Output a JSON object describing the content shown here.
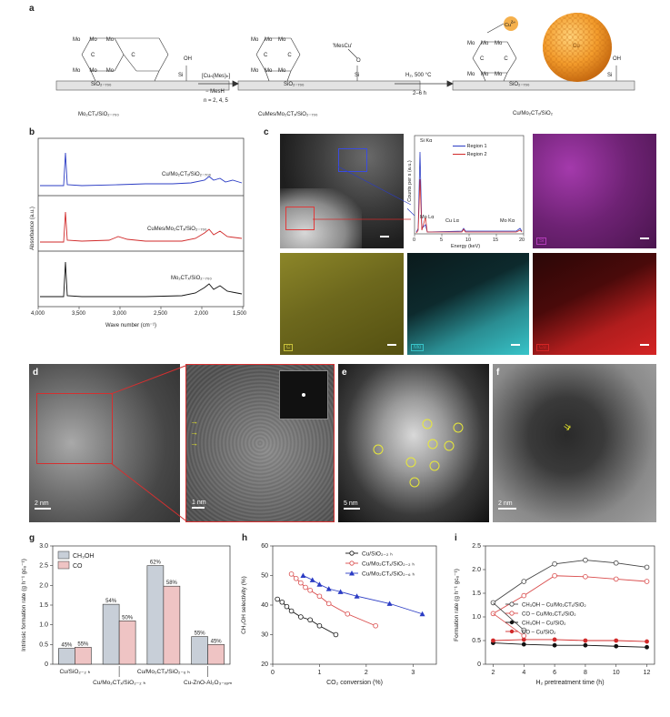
{
  "panel_a": {
    "label": "a",
    "surface1": "SiO₂₋₇₀₀",
    "surface2": "SiO₂₋₇₀₀",
    "surface3": "SiO₂₋₇₀₀",
    "caption1": "Mo₂CTₓ/SiO₂₋₇₀₀",
    "caption2": "CuMes/Mo₂CTₓ/SiO₂₋₇₀₀",
    "caption3": "Cu/Mo₂CTₓ/SiO₂",
    "arrow1_top": "[Cuₙ(Mes)ₙ]",
    "arrow1_mid": "− MesH",
    "arrow1_bottom": "n = 2, 4, 5",
    "arrow2_top": "H₂, 500 °C",
    "arrow2_bottom": "2–6 h",
    "oh": "OH",
    "si": "Si",
    "mescu": "'MesCu'",
    "cu_delta": "Cu",
    "delta": "δ+",
    "cu_np": "Cu",
    "mo": "Mo",
    "c": "C",
    "o": "O"
  },
  "panel_b": {
    "label": "b",
    "ylabel": "Absorbance (a.u.)",
    "xlabel": "Wave number (cm⁻¹)",
    "xticks": [
      "4,000",
      "3,500",
      "3,000",
      "2,500",
      "2,000",
      "1,500"
    ],
    "traces": [
      {
        "name": "Cu/Mo₂CTₓ/SiO₂₋₇₀₀",
        "color": "#2b3cc4"
      },
      {
        "name": "CuMes/Mo₂CTₓ/SiO₂₋₇₀₀",
        "color": "#d12a2a"
      },
      {
        "name": "Mo₂CTₓ/SiO₂₋₇₀₀",
        "color": "#111111"
      }
    ]
  },
  "panel_c": {
    "label": "c",
    "eds_ylabel": "Counts per s (a.u.)",
    "eds_xlabel": "Energy (keV)",
    "eds_xticks": [
      "0",
      "5",
      "10",
      "15",
      "20"
    ],
    "legend": [
      {
        "name": "Region 1",
        "color": "#2b3cc4"
      },
      {
        "name": "Region 2",
        "color": "#d12a2a"
      }
    ],
    "peaks": [
      "Si Kα",
      "Mo Lα",
      "Cu Lα",
      "Mo Kα"
    ],
    "maps": [
      {
        "label": "Si",
        "color": "#b23cb8"
      },
      {
        "label": "C",
        "color": "#c9c23a"
      },
      {
        "label": "Mo",
        "color": "#38c4c9"
      },
      {
        "label": "Cu",
        "color": "#d42424"
      }
    ]
  },
  "panel_d": {
    "label": "d",
    "scale1": "2 nm",
    "scale2": "1 nm"
  },
  "panel_e": {
    "label": "e",
    "scale": "5 nm"
  },
  "panel_f": {
    "label": "f",
    "scale": "2 nm"
  },
  "panel_g": {
    "label": "g",
    "ylabel": "Intrinsic formation rate (g h⁻¹ gᴄᵤ⁻¹)",
    "legend": [
      "CH₃OH",
      "CO"
    ],
    "categories_top": [
      "Cu/SiO₂₋₂ ₕ",
      "Cu/Mo₂CTₓ/SiO₂₋₆ ₕ"
    ],
    "categories_bottom": [
      "Cu/Mo₂CTₓ/SiO₂₋₂ ₕ",
      "Cu-ZnO-Al₂O₃₋ₓₒₘ"
    ],
    "yticks": [
      "0",
      "0.5",
      "1.0",
      "1.5",
      "2.0",
      "2.5",
      "3.0"
    ],
    "labels_pct": [
      "45%",
      "55%",
      "54%",
      "50%",
      "62%",
      "58%",
      "55%",
      "45%"
    ]
  },
  "panel_h": {
    "label": "h",
    "ylabel": "CH₃OH selectivity (%)",
    "xlabel": "CO₂ conversion (%)",
    "xticks": [
      "0",
      "1",
      "2",
      "3"
    ],
    "yticks": [
      "20",
      "30",
      "40",
      "50",
      "60"
    ],
    "series_names": [
      "Cu/SiO₂₋₂ ₕ",
      "Cu/Mo₂CTₓ/SiO₂₋₂ ₕ",
      "Cu/Mo₂CTₓ/SiO₂₋₆ ₕ"
    ]
  },
  "panel_i": {
    "label": "i",
    "ylabel": "Formation rate (g h⁻¹ gᴄᵤ⁻¹)",
    "xlabel": "H₂ pretreatment time (h)",
    "xticks": [
      "2",
      "4",
      "6",
      "8",
      "10",
      "12"
    ],
    "yticks": [
      "0",
      "0.5",
      "1.0",
      "1.5",
      "2.0",
      "2.5"
    ],
    "legend": [
      "CH₃OH – Cu/Mo₂CTₓ/SiO₂",
      "CO – Cu/Mo₂CTₓ/SiO₂",
      "CH₃OH – Cu/SiO₂",
      "CO – Cu/SiO₂"
    ]
  },
  "chart_data": [
    {
      "type": "bar",
      "panel": "g",
      "categories": [
        "Cu/SiO₂₋₂ ₕ",
        "Cu/Mo₂CTₓ/SiO₂₋₂ ₕ",
        "Cu/Mo₂CTₓ/SiO₂₋₆ ₕ",
        "Cu-ZnO-Al₂O₃₋ₓₒₘ"
      ],
      "series": [
        {
          "name": "CH₃OH",
          "color": "#c8cfd8",
          "values": [
            0.4,
            1.52,
            2.5,
            0.7
          ],
          "labels": [
            "45%",
            "54%",
            "62%",
            "55%"
          ]
        },
        {
          "name": "CO",
          "color": "#efc4c4",
          "values": [
            0.43,
            1.1,
            1.98,
            0.5
          ],
          "labels": [
            "55%",
            "50%",
            "58%",
            "45%"
          ]
        }
      ],
      "ylim": [
        0,
        3.0
      ]
    },
    {
      "type": "line",
      "panel": "h",
      "xlim": [
        0,
        3.5
      ],
      "ylim": [
        20,
        60
      ],
      "series": [
        {
          "name": "Cu/SiO₂₋₂ ₕ",
          "color": "#111111",
          "marker": "circle-open",
          "x": [
            0.1,
            0.2,
            0.3,
            0.4,
            0.6,
            0.8,
            1.0,
            1.35
          ],
          "y": [
            42,
            41,
            39.5,
            38,
            36,
            35,
            33,
            30
          ]
        },
        {
          "name": "Cu/Mo₂CTₓ/SiO₂₋₂ ₕ",
          "color": "#d94a4a",
          "marker": "circle-open",
          "x": [
            0.4,
            0.5,
            0.6,
            0.7,
            0.8,
            1.0,
            1.2,
            1.6,
            2.2
          ],
          "y": [
            50.5,
            49,
            47.5,
            46,
            45,
            43,
            40.5,
            37,
            33
          ]
        },
        {
          "name": "Cu/Mo₂CTₓ/SiO₂₋₆ ₕ",
          "color": "#2b3cc4",
          "marker": "triangle",
          "x": [
            0.65,
            0.85,
            1.0,
            1.2,
            1.45,
            1.8,
            2.5,
            3.2
          ],
          "y": [
            50,
            48.5,
            47,
            45.5,
            44.5,
            43,
            40.5,
            37
          ]
        }
      ]
    },
    {
      "type": "line",
      "panel": "i",
      "xlim": [
        1.5,
        12.5
      ],
      "ylim": [
        0,
        2.5
      ],
      "series": [
        {
          "name": "CH₃OH – Cu/Mo₂CTₓ/SiO₂",
          "color": "#444444",
          "marker": "circle-open",
          "x": [
            2,
            4,
            6,
            8,
            10,
            12
          ],
          "y": [
            1.3,
            1.75,
            2.12,
            2.2,
            2.14,
            2.05
          ]
        },
        {
          "name": "CO – Cu/Mo₂CTₓ/SiO₂",
          "color": "#d94a4a",
          "marker": "circle-open",
          "x": [
            2,
            4,
            6,
            8,
            10,
            12
          ],
          "y": [
            1.07,
            1.45,
            1.87,
            1.85,
            1.8,
            1.75
          ]
        },
        {
          "name": "CH₃OH – Cu/SiO₂",
          "color": "#111111",
          "marker": "circle-filled",
          "x": [
            2,
            4,
            6,
            8,
            10,
            12
          ],
          "y": [
            0.45,
            0.42,
            0.4,
            0.4,
            0.38,
            0.36
          ]
        },
        {
          "name": "CO – Cu/SiO₂",
          "color": "#d12a2a",
          "marker": "circle-filled",
          "x": [
            2,
            4,
            6,
            8,
            10,
            12
          ],
          "y": [
            0.5,
            0.52,
            0.52,
            0.5,
            0.5,
            0.48
          ]
        }
      ],
      "annotations": [
        {
          "name": "CH₃OH – Cu/Mo₂CTₓ/SiO₂",
          "x": [
            2,
            4
          ],
          "y": [
            1.3,
            0.72
          ]
        },
        {
          "name": "CO – Cu/Mo₂CTₓ/SiO₂",
          "x": [
            2,
            4
          ],
          "y": [
            1.07,
            0.6
          ]
        }
      ]
    }
  ]
}
